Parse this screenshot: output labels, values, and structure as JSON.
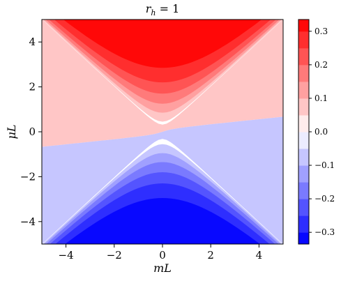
{
  "chart_data": {
    "type": "heatmap",
    "title": "r_h = 1",
    "title_parts": {
      "var": "r",
      "sub": "h",
      "rest": " = 1"
    },
    "xlabel": "mL",
    "ylabel": "μL",
    "xlim": [
      -5,
      5
    ],
    "ylim": [
      -5,
      5
    ],
    "x_ticks": [
      -4,
      -2,
      0,
      2,
      4
    ],
    "x_tick_labels": [
      "−4",
      "−2",
      "0",
      "2",
      "4"
    ],
    "y_ticks": [
      -4,
      -2,
      0,
      2,
      4
    ],
    "y_tick_labels": [
      "−4",
      "−2",
      "0",
      "2",
      "4"
    ],
    "colormap": "bwr",
    "color_levels": [
      -0.35,
      -0.3,
      -0.25,
      -0.2,
      -0.15,
      -0.1,
      -0.05,
      0.0,
      0.05,
      0.1,
      0.15,
      0.2,
      0.25,
      0.3,
      0.35
    ],
    "colorbar": {
      "range": [
        -0.335,
        0.335
      ],
      "ticks": [
        -0.3,
        -0.2,
        -0.1,
        0.0,
        0.1,
        0.2,
        0.3
      ],
      "tick_labels": [
        "−0.3",
        "−0.2",
        "−0.1",
        "0.0",
        "0.1",
        "0.2",
        "0.3"
      ]
    },
    "regions": {
      "upper_band_values": [
        0.075,
        0.125,
        0.175,
        0.225,
        0.275,
        0.325
      ],
      "lower_band_values": [
        -0.075,
        -0.125,
        -0.175,
        -0.225,
        -0.275,
        -0.325
      ],
      "gap_value_above": 0.075,
      "gap_value_below": -0.075,
      "white_value": 0.0
    }
  }
}
